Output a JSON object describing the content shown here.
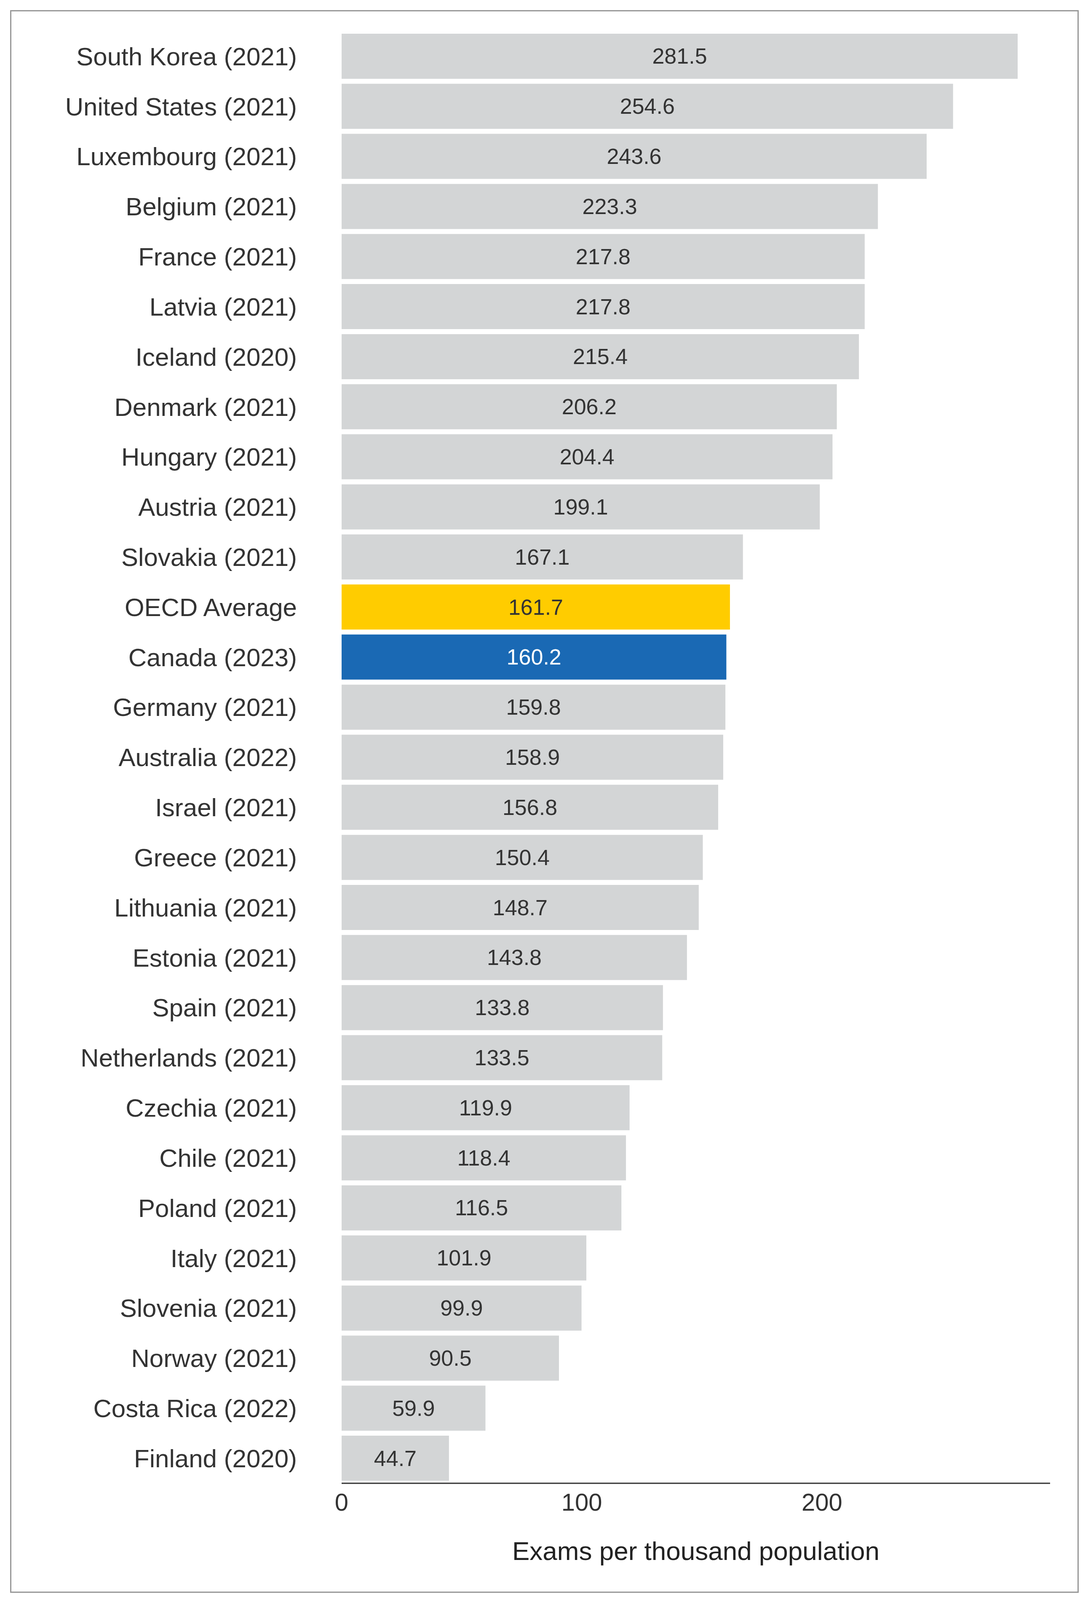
{
  "chart_data": {
    "type": "bar",
    "orientation": "horizontal",
    "xlabel": "Exams per thousand population",
    "categories": [
      "South Korea (2021)",
      "United States (2021)",
      "Luxembourg (2021)",
      "Belgium (2021)",
      "France (2021)",
      "Latvia (2021)",
      "Iceland (2020)",
      "Denmark (2021)",
      "Hungary (2021)",
      "Austria (2021)",
      "Slovakia (2021)",
      "OECD Average",
      "Canada (2023)",
      "Germany (2021)",
      "Australia (2022)",
      "Israel (2021)",
      "Greece (2021)",
      "Lithuania (2021)",
      "Estonia (2021)",
      "Spain (2021)",
      "Netherlands (2021)",
      "Czechia (2021)",
      "Chile (2021)",
      "Poland (2021)",
      "Italy (2021)",
      "Slovenia (2021)",
      "Norway (2021)",
      "Costa Rica (2022)",
      "Finland (2020)"
    ],
    "values": [
      281.5,
      254.6,
      243.6,
      223.3,
      217.8,
      217.8,
      215.4,
      206.2,
      204.4,
      199.1,
      167.1,
      161.7,
      160.2,
      159.8,
      158.9,
      156.8,
      150.4,
      148.7,
      143.8,
      133.8,
      133.5,
      119.9,
      118.4,
      116.5,
      101.9,
      99.9,
      90.5,
      59.9,
      44.7
    ],
    "colors": [
      "#d3d5d6",
      "#d3d5d6",
      "#d3d5d6",
      "#d3d5d6",
      "#d3d5d6",
      "#d3d5d6",
      "#d3d5d6",
      "#d3d5d6",
      "#d3d5d6",
      "#d3d5d6",
      "#d3d5d6",
      "#ffcc00",
      "#1a69b4",
      "#d3d5d6",
      "#d3d5d6",
      "#d3d5d6",
      "#d3d5d6",
      "#d3d5d6",
      "#d3d5d6",
      "#d3d5d6",
      "#d3d5d6",
      "#d3d5d6",
      "#d3d5d6",
      "#d3d5d6",
      "#d3d5d6",
      "#d3d5d6",
      "#d3d5d6",
      "#d3d5d6",
      "#d3d5d6"
    ],
    "xlim": [
      0,
      295
    ],
    "xticks": [
      0,
      100,
      200
    ],
    "data_labels": true,
    "grid": false
  }
}
